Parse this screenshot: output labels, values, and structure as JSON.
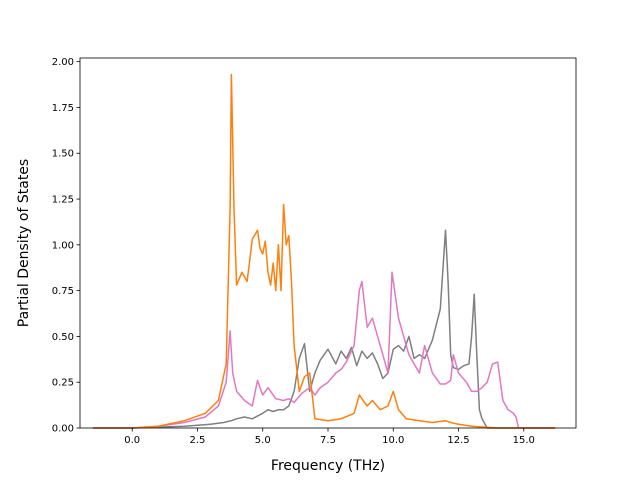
{
  "chart_data": {
    "type": "line",
    "title": "",
    "xlabel": "Frequency (THz)",
    "ylabel": "Partial Density of States",
    "xlim": [
      -2.0,
      17.0
    ],
    "ylim": [
      0.0,
      2.02
    ],
    "xticks": [
      0.0,
      2.5,
      5.0,
      7.5,
      10.0,
      12.5,
      15.0
    ],
    "xtick_labels": [
      "0.0",
      "2.5",
      "5.0",
      "7.5",
      "10.0",
      "12.5",
      "15.0"
    ],
    "yticks": [
      0.0,
      0.25,
      0.5,
      0.75,
      1.0,
      1.25,
      1.5,
      1.75,
      2.0
    ],
    "ytick_labels": [
      "0.00",
      "0.25",
      "0.50",
      "0.75",
      "1.00",
      "1.25",
      "1.50",
      "1.75",
      "2.00"
    ],
    "grid": false,
    "legend": "none",
    "series": [
      {
        "color": "#7f7f7f",
        "x": [
          -1.5,
          0.0,
          1.0,
          2.0,
          3.0,
          3.5,
          3.8,
          4.0,
          4.3,
          4.6,
          5.0,
          5.2,
          5.4,
          5.6,
          5.8,
          6.0,
          6.2,
          6.4,
          6.6,
          6.8,
          7.0,
          7.2,
          7.5,
          7.8,
          8.0,
          8.2,
          8.4,
          8.6,
          8.8,
          9.0,
          9.2,
          9.4,
          9.6,
          9.8,
          10.0,
          10.2,
          10.4,
          10.6,
          10.8,
          11.0,
          11.2,
          11.5,
          11.8,
          12.0,
          12.1,
          12.2,
          12.3,
          12.5,
          12.7,
          12.9,
          13.0,
          13.1,
          13.2,
          13.3,
          13.4,
          13.6,
          13.8,
          14.0,
          16.2
        ],
        "y": [
          0.0,
          0.0,
          0.005,
          0.01,
          0.02,
          0.03,
          0.04,
          0.05,
          0.06,
          0.05,
          0.08,
          0.1,
          0.09,
          0.1,
          0.1,
          0.12,
          0.2,
          0.38,
          0.46,
          0.2,
          0.3,
          0.37,
          0.43,
          0.35,
          0.42,
          0.38,
          0.44,
          0.34,
          0.42,
          0.38,
          0.41,
          0.35,
          0.27,
          0.3,
          0.43,
          0.45,
          0.42,
          0.5,
          0.38,
          0.4,
          0.38,
          0.48,
          0.65,
          1.08,
          0.8,
          0.4,
          0.33,
          0.32,
          0.34,
          0.35,
          0.5,
          0.73,
          0.4,
          0.1,
          0.05,
          0.0,
          0.0,
          0.0,
          0.0
        ]
      },
      {
        "color": "#e377c2",
        "x": [
          -1.5,
          0.0,
          1.0,
          2.0,
          2.8,
          3.3,
          3.6,
          3.75,
          3.85,
          4.0,
          4.3,
          4.6,
          4.8,
          5.0,
          5.2,
          5.5,
          5.8,
          6.0,
          6.2,
          6.5,
          6.8,
          7.0,
          7.2,
          7.5,
          7.8,
          8.0,
          8.2,
          8.5,
          8.7,
          8.8,
          9.0,
          9.2,
          9.4,
          9.6,
          9.8,
          9.95,
          10.0,
          10.2,
          10.4,
          10.6,
          10.8,
          11.0,
          11.2,
          11.5,
          11.8,
          12.0,
          12.2,
          12.3,
          12.5,
          12.8,
          13.0,
          13.2,
          13.4,
          13.6,
          13.8,
          14.0,
          14.2,
          14.4,
          14.6,
          14.7,
          14.8,
          16.2
        ],
        "y": [
          0.0,
          0.0,
          0.01,
          0.03,
          0.06,
          0.12,
          0.25,
          0.53,
          0.3,
          0.2,
          0.15,
          0.12,
          0.26,
          0.18,
          0.22,
          0.16,
          0.15,
          0.16,
          0.14,
          0.19,
          0.22,
          0.18,
          0.22,
          0.25,
          0.3,
          0.32,
          0.36,
          0.45,
          0.75,
          0.8,
          0.55,
          0.6,
          0.5,
          0.4,
          0.3,
          0.85,
          0.8,
          0.6,
          0.5,
          0.4,
          0.35,
          0.3,
          0.45,
          0.3,
          0.24,
          0.24,
          0.26,
          0.4,
          0.3,
          0.25,
          0.2,
          0.2,
          0.22,
          0.25,
          0.35,
          0.36,
          0.15,
          0.1,
          0.08,
          0.06,
          0.0,
          0.0
        ]
      },
      {
        "color": "#ff7f0e",
        "x": [
          -1.5,
          0.0,
          1.0,
          2.0,
          2.8,
          3.3,
          3.6,
          3.75,
          3.8,
          3.9,
          4.0,
          4.2,
          4.4,
          4.6,
          4.8,
          4.9,
          5.0,
          5.1,
          5.2,
          5.3,
          5.4,
          5.5,
          5.6,
          5.7,
          5.8,
          5.9,
          6.0,
          6.1,
          6.2,
          6.4,
          6.6,
          6.8,
          7.0,
          7.5,
          8.0,
          8.5,
          8.7,
          8.8,
          9.0,
          9.2,
          9.5,
          9.8,
          10.0,
          10.2,
          10.5,
          11.0,
          11.5,
          12.0,
          12.2,
          12.5,
          13.0,
          14.0,
          16.2
        ],
        "y": [
          0.0,
          0.0,
          0.01,
          0.04,
          0.08,
          0.15,
          0.35,
          1.2,
          1.93,
          1.2,
          0.78,
          0.85,
          0.8,
          1.03,
          1.08,
          0.98,
          0.95,
          1.02,
          0.85,
          0.78,
          0.9,
          0.75,
          1.0,
          0.75,
          1.22,
          1.0,
          1.05,
          0.8,
          0.45,
          0.2,
          0.28,
          0.3,
          0.05,
          0.04,
          0.05,
          0.08,
          0.18,
          0.16,
          0.12,
          0.15,
          0.1,
          0.12,
          0.2,
          0.1,
          0.05,
          0.04,
          0.03,
          0.04,
          0.03,
          0.02,
          0.01,
          0.0,
          0.0
        ]
      }
    ]
  }
}
